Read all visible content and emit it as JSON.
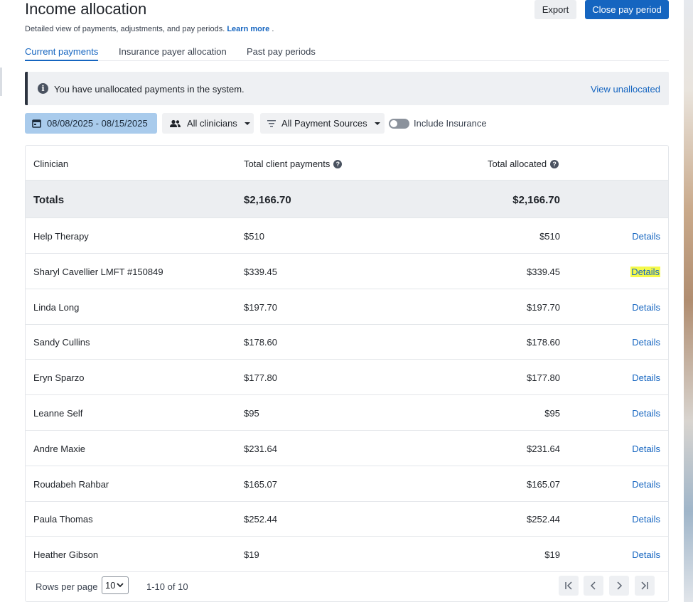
{
  "header": {
    "title": "Income allocation",
    "subtitle": "Detailed view of payments, adjustments, and pay periods.",
    "learn_more": "Learn more",
    "subtitle_end": ".",
    "export_label": "Export",
    "close_label": "Close pay period"
  },
  "tabs": [
    {
      "label": "Current payments",
      "active": true
    },
    {
      "label": "Insurance payer allocation",
      "active": false
    },
    {
      "label": "Past pay periods",
      "active": false
    }
  ],
  "alert": {
    "icon": "info-icon",
    "text": "You have unallocated payments in the system.",
    "link": "View unallocated"
  },
  "filters": {
    "date_range": "08/08/2025 - 08/15/2025",
    "clinicians": "All clinicians",
    "sources": "All Payment Sources",
    "include_insurance_label": "Include Insurance",
    "include_insurance_on": false
  },
  "table": {
    "columns": {
      "clinician": "Clinician",
      "client_payments": "Total client payments",
      "allocated": "Total allocated"
    },
    "totals": {
      "label": "Totals",
      "client_payments": "$2,166.70",
      "allocated": "$2,166.70"
    },
    "details_label": "Details",
    "rows": [
      {
        "clinician": "Help Therapy",
        "client_payments": "$510",
        "allocated": "$510"
      },
      {
        "clinician": "Sharyl Cavellier LMFT #150849",
        "client_payments": "$339.45",
        "allocated": "$339.45"
      },
      {
        "clinician": "Linda Long",
        "client_payments": "$197.70",
        "allocated": "$197.70"
      },
      {
        "clinician": "Sandy Cullins",
        "client_payments": "$178.60",
        "allocated": "$178.60"
      },
      {
        "clinician": "Eryn Sparzo",
        "client_payments": "$177.80",
        "allocated": "$177.80"
      },
      {
        "clinician": "Leanne Self",
        "client_payments": "$95",
        "allocated": "$95"
      },
      {
        "clinician": "Andre Maxie",
        "client_payments": "$231.64",
        "allocated": "$231.64"
      },
      {
        "clinician": "Roudabeh Rahbar",
        "client_payments": "$165.07",
        "allocated": "$165.07"
      },
      {
        "clinician": "Paula Thomas",
        "client_payments": "$252.44",
        "allocated": "$252.44"
      },
      {
        "clinician": "Heather Gibson",
        "client_payments": "$19",
        "allocated": "$19"
      }
    ],
    "highlighted_row": 1
  },
  "pagination": {
    "rows_per_page_label": "Rows per page",
    "rows_per_page": "10",
    "range": "1-10 of 10"
  },
  "colors": {
    "accent": "#1565c0",
    "highlight": "#f4f94a"
  }
}
